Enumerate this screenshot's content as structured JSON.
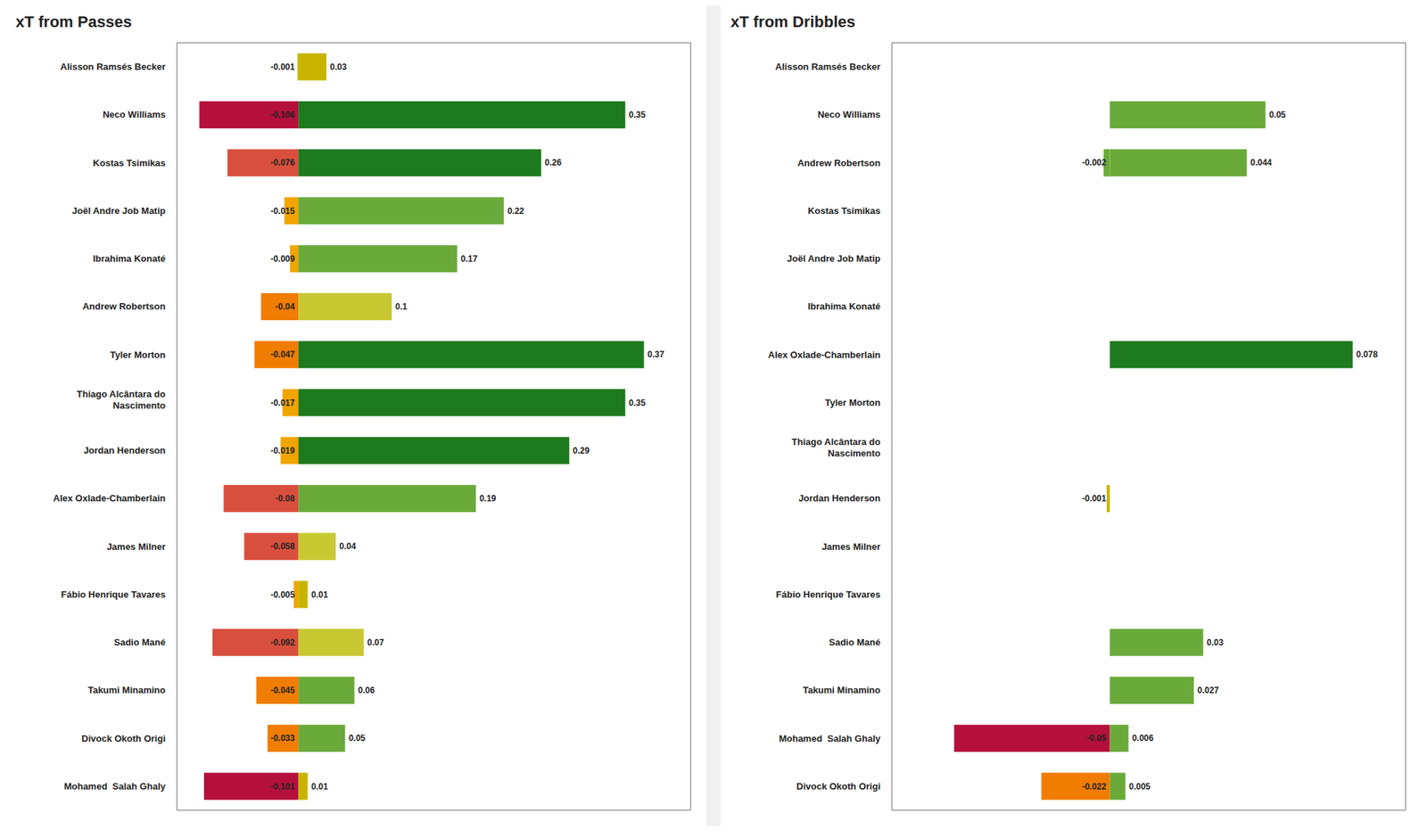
{
  "chart_data": [
    {
      "type": "bar",
      "title": "xT from Passes",
      "orientation": "horizontal",
      "stacked": true,
      "data_labels": true,
      "tick_labels": "y",
      "grid": false,
      "xlim": [
        -0.13,
        0.42
      ],
      "categories": [
        "Alisson Ramsés Becker",
        "Neco Williams",
        "Kostas Tsimikas",
        "Joël Andre Job Matip",
        "Ibrahima Konaté",
        "Andrew Robertson",
        "Tyler Morton",
        "Thiago Alcântara do\nNascimento",
        "Jordan Henderson",
        "Alex Oxlade-Chamberlain",
        "James Milner",
        "Fábio Henrique Tavares",
        "Sadio Mané",
        "Takumi Minamino",
        "Divock Okoth Origi",
        "Mohamed  Salah Ghaly"
      ],
      "series": [
        {
          "values": [
            -0.001,
            -0.106,
            -0.076,
            -0.015,
            -0.009,
            -0.04,
            -0.047,
            -0.017,
            -0.019,
            -0.08,
            -0.058,
            -0.005,
            -0.092,
            -0.045,
            -0.033,
            -0.101
          ],
          "colors": [
            "#c8b400",
            "#b5103c",
            "#d94f3d",
            "#f0a500",
            "#f0a500",
            "#f07d00",
            "#f07d00",
            "#f0a500",
            "#f0a500",
            "#d94f3d",
            "#d94f3d",
            "#f0a500",
            "#d94f3d",
            "#f07d00",
            "#f07d00",
            "#b5103c"
          ]
        },
        {
          "values": [
            0.03,
            0.35,
            0.26,
            0.22,
            0.17,
            0.1,
            0.37,
            0.35,
            0.29,
            0.19,
            0.04,
            0.01,
            0.07,
            0.06,
            0.05,
            0.01
          ],
          "colors": [
            "#c8b400",
            "#1e7a1e",
            "#1e7a1e",
            "#6aaa3a",
            "#6aaa3a",
            "#c8c832",
            "#1e7a1e",
            "#1e7a1e",
            "#1e7a1e",
            "#6aaa3a",
            "#c8c832",
            "#c8b400",
            "#c8c832",
            "#6aaa3a",
            "#6aaa3a",
            "#c8b400"
          ]
        }
      ]
    },
    {
      "type": "bar",
      "title": "xT from Dribbles",
      "orientation": "horizontal",
      "stacked": true,
      "data_labels": true,
      "tick_labels": "y",
      "grid": false,
      "xlim": [
        -0.07,
        0.095
      ],
      "categories": [
        "Alisson Ramsés Becker",
        "Neco Williams",
        "Andrew Robertson",
        "Kostas Tsimikas",
        "Joël Andre Job Matip",
        "Ibrahima Konaté",
        "Alex Oxlade-Chamberlain",
        "Tyler Morton",
        "Thiago Alcântara do\nNascimento",
        "Jordan Henderson",
        "James Milner",
        "Fábio Henrique Tavares",
        "Sadio Mané",
        "Takumi Minamino",
        "Mohamed  Salah Ghaly",
        "Divock Okoth Origi"
      ],
      "series": [
        {
          "values": [
            0,
            0,
            -0.002,
            0,
            0,
            0,
            0,
            0,
            0,
            -0.001,
            0,
            0,
            0,
            0,
            -0.05,
            -0.022
          ],
          "colors": [
            "#c8b400",
            "#c8b400",
            "#6aaa3a",
            "#c8b400",
            "#c8b400",
            "#c8b400",
            "#c8b400",
            "#c8b400",
            "#c8b400",
            "#c8b400",
            "#c8b400",
            "#c8b400",
            "#c8b400",
            "#c8b400",
            "#b5103c",
            "#f07d00"
          ]
        },
        {
          "values": [
            0,
            0.05,
            0.044,
            0,
            0,
            0,
            0.078,
            0,
            0,
            0,
            0,
            0,
            0.03,
            0.027,
            0.006,
            0.005
          ],
          "colors": [
            "#c8b400",
            "#6aaa3a",
            "#6aaa3a",
            "#c8b400",
            "#c8b400",
            "#c8b400",
            "#1e7a1e",
            "#c8b400",
            "#c8b400",
            "#c8b400",
            "#c8b400",
            "#c8b400",
            "#6aaa3a",
            "#6aaa3a",
            "#6aaa3a",
            "#6aaa3a"
          ]
        }
      ]
    }
  ]
}
